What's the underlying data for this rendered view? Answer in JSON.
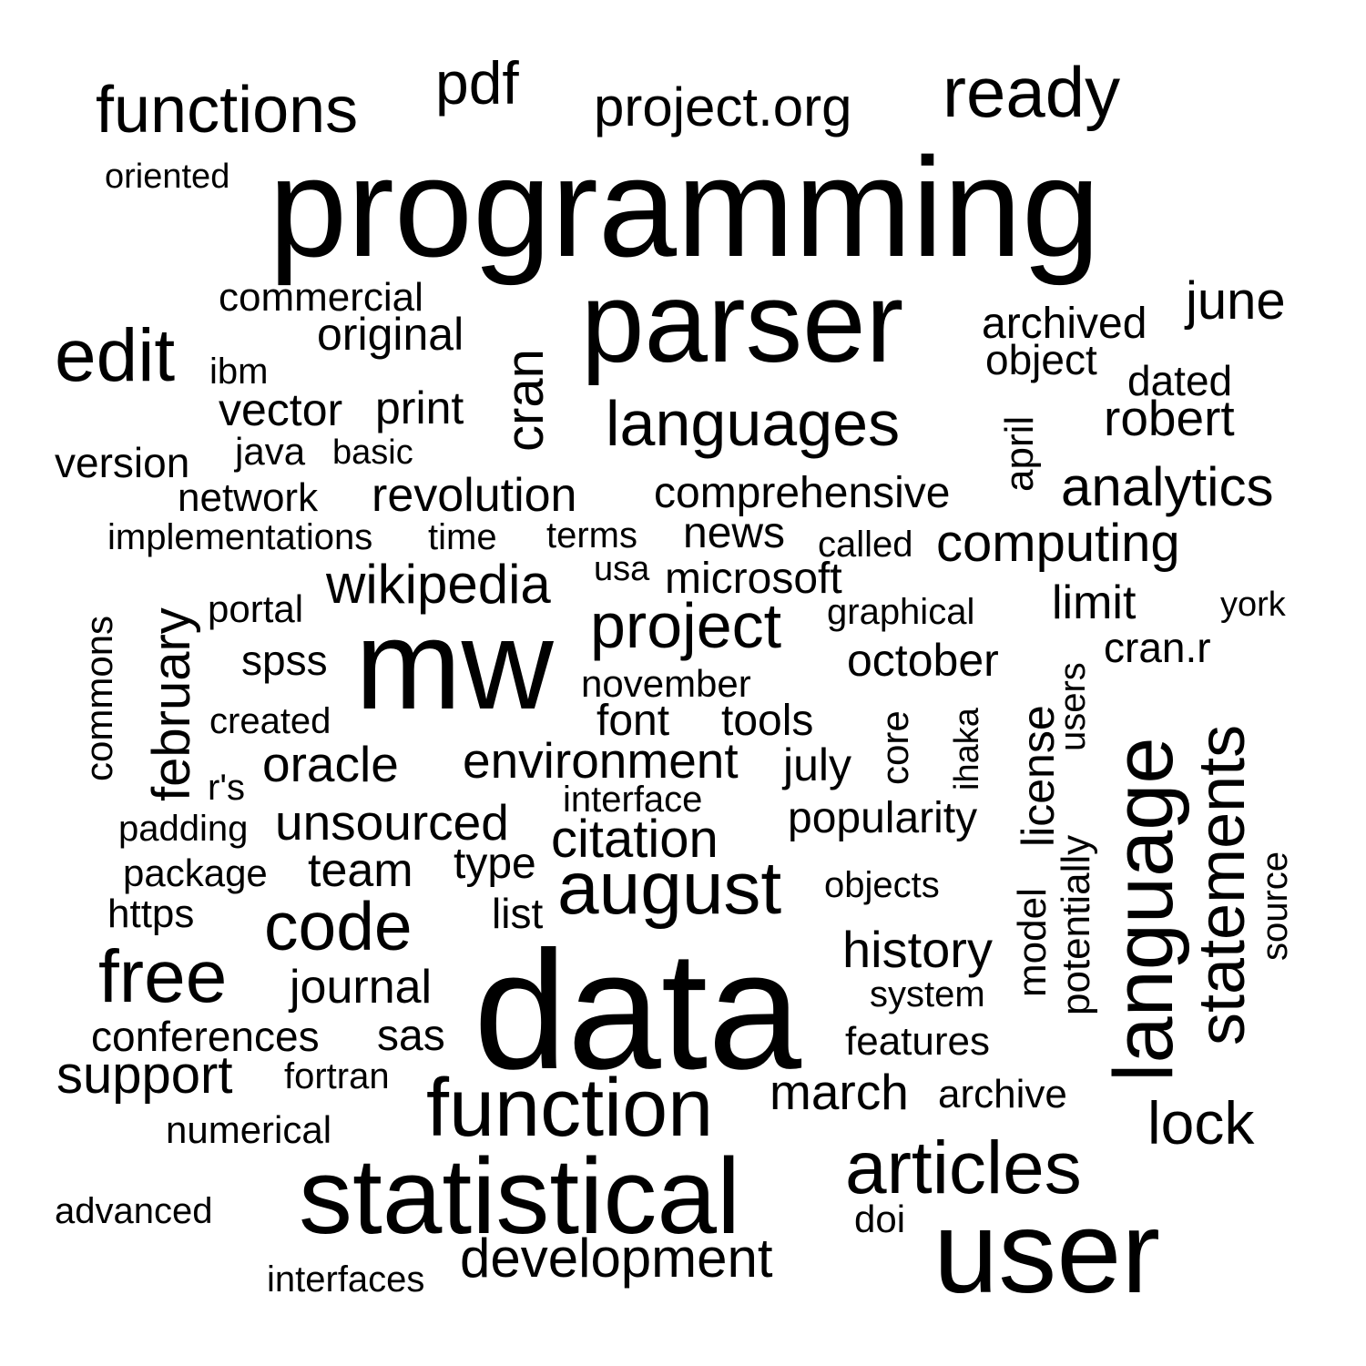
{
  "word_cloud": {
    "text_color": "#000000",
    "background_color": "#ffffff",
    "words": [
      "programming",
      "data",
      "parser",
      "mw",
      "user",
      "statistical",
      "language",
      "function",
      "articles",
      "august",
      "free",
      "edit",
      "code",
      "ready",
      "statements",
      "functions",
      "languages",
      "project",
      "development",
      "citation",
      "history",
      "cran",
      "lock",
      "pdf",
      "project.org",
      "analytics",
      "june",
      "computing",
      "wikipedia",
      "environment",
      "support",
      "unsourced",
      "february",
      "revolution",
      "march",
      "journal",
      "team",
      "oracle",
      "comprehensive",
      "robert",
      "conferences",
      "archived",
      "limit",
      "vector",
      "print",
      "license",
      "october",
      "original",
      "type",
      "sas",
      "popularity",
      "news",
      "microsoft",
      "object",
      "features",
      "potentially",
      "model",
      "archive",
      "version",
      "tools",
      "font",
      "july",
      "cran.r",
      "commercial",
      "april",
      "spss",
      "list",
      "dated",
      "network",
      "https",
      "implementations",
      "november",
      "terms",
      "package",
      "portal",
      "interface",
      "graphical",
      "system",
      "users",
      "core",
      "time",
      "york",
      "commons",
      "fortran",
      "objects",
      "called",
      "usa",
      "java",
      "basic",
      "padding",
      "numerical",
      "doi",
      "interfaces",
      "source",
      "created",
      "advanced",
      "ibm",
      "oriented",
      "r's",
      "ihaka"
    ]
  }
}
